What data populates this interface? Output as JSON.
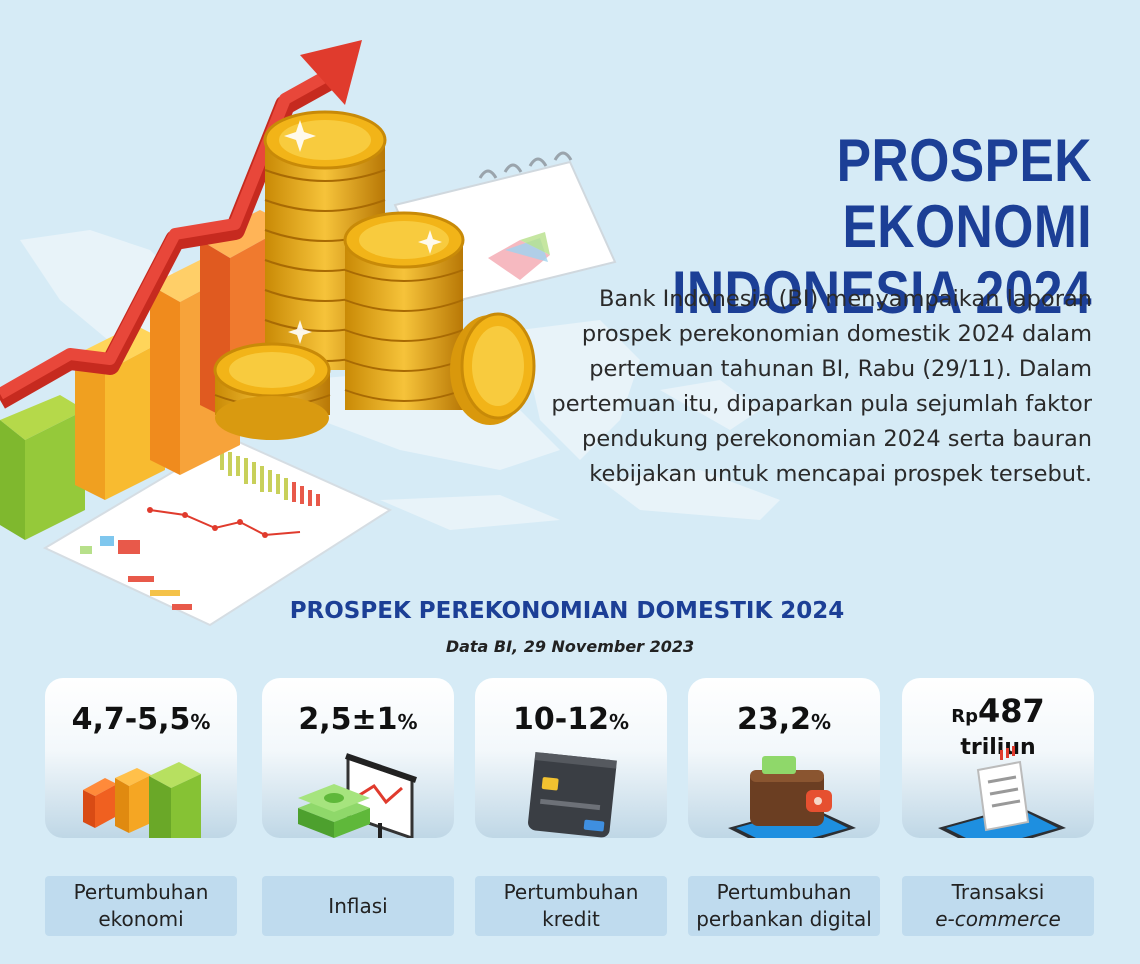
{
  "header": {
    "title_line1": "PROSPEK EKONOMI",
    "title_line2": "INDONESIA 2024",
    "intro": "Bank Indonesia (BI) menyampaikan laporan prospek perekonomian domestik 2024 dalam pertemuan tahunan BI, Rabu (29/11). Dalam pertemuan itu, dipaparkan pula sejumlah faktor pendukung perekonomian 2024 serta bauran kebijakan untuk mencapai prospek tersebut."
  },
  "section": {
    "heading": "PROSPEK PEREKONOMIAN DOMESTIK 2024",
    "source": "Data BI, 29 November 2023"
  },
  "indicators": [
    {
      "value": "4,7-5,5",
      "unit": "%",
      "label_line1": "Pertumbuhan",
      "label_line2": "ekonomi",
      "icon": "bar-chart-icon"
    },
    {
      "value": "2,5±1",
      "unit": "%",
      "label_line1": "Inflasi",
      "label_line2": "",
      "icon": "money-presentation-icon"
    },
    {
      "value": "10-12",
      "unit": "%",
      "label_line1": "Pertumbuhan",
      "label_line2": "kredit",
      "icon": "credit-card-icon"
    },
    {
      "value": "23,2",
      "unit": "%",
      "label_line1": "Pertumbuhan",
      "label_line2": "perbankan digital",
      "icon": "wallet-phone-icon"
    },
    {
      "prefix": "Rp",
      "value": "487",
      "sub": "triliun",
      "label_line1": "Transaksi",
      "label_line2": "e-commerce",
      "icon": "receipt-phone-icon"
    }
  ],
  "colors": {
    "title": "#1c3f96",
    "background": "#d6ebf6",
    "label_bg": "#bfdbee",
    "gold": "#f2b418",
    "arrow": "#e03b2d"
  }
}
